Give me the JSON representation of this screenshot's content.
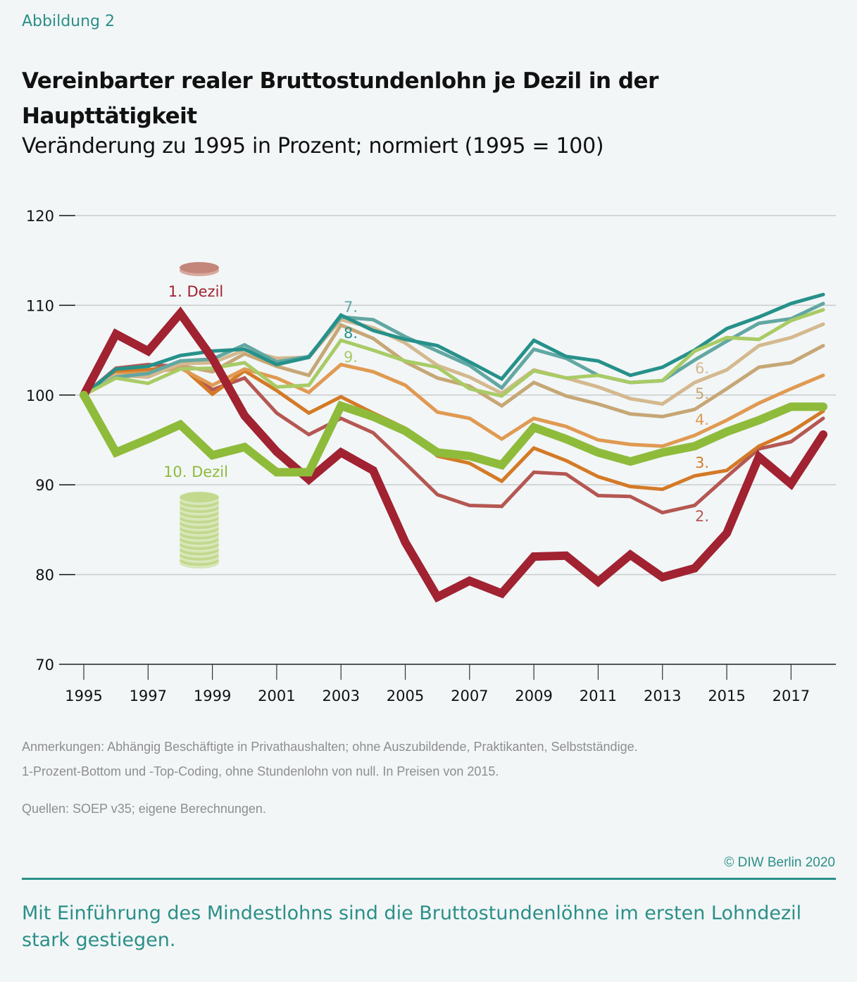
{
  "header": {
    "figure_label": "Abbildung 2",
    "title": "Vereinbarter realer Bruttostundenlohn je Dezil in der Haupttätigkeit",
    "subtitle": "Veränderung zu 1995 in Prozent; normiert (1995 = 100)"
  },
  "footer": {
    "notes_line1": "Anmerkungen: Abhängig Beschäftigte in Privathaushalten; ohne Auszubildende, Praktikanten, Selbstständige.",
    "notes_line2": "1-Prozent-Bottom und -Top-Coding, ohne Stundenlohn von null. In Preisen von 2015.",
    "sources": "Quellen: SOEP v35; eigene Berechnungen.",
    "copyright": "© DIW Berlin 2020",
    "takeaway": "Mit Einführung des Mindestlohns sind die Bruttostundenlöhne im ersten Lohndezil stark gestiegen."
  },
  "chart_data": {
    "type": "line",
    "title": "Vereinbarter realer Bruttostundenlohn je Dezil in der Haupttätigkeit",
    "subtitle": "Veränderung zu 1995 in Prozent; normiert (1995 = 100)",
    "xlabel": "",
    "ylabel": "",
    "ylim": [
      70,
      120
    ],
    "xlim": [
      1995,
      2018
    ],
    "yticks": [
      70,
      80,
      90,
      100,
      110,
      120
    ],
    "xticks": [
      1995,
      1997,
      1999,
      2001,
      2003,
      2005,
      2007,
      2009,
      2011,
      2013,
      2015,
      2017
    ],
    "grid": true,
    "x": [
      1995,
      1996,
      1997,
      1998,
      1999,
      2000,
      2001,
      2002,
      2003,
      2004,
      2005,
      2006,
      2007,
      2008,
      2009,
      2010,
      2011,
      2012,
      2013,
      2014,
      2015,
      2016,
      2017,
      2018
    ],
    "series": [
      {
        "name": "2.",
        "color": "#b55752",
        "label": "2.",
        "values": [
          100,
          103.0,
          103.4,
          103.2,
          100.6,
          101.9,
          98.0,
          95.6,
          97.4,
          95.8,
          92.4,
          88.9,
          87.7,
          87.6,
          91.4,
          91.2,
          88.8,
          88.7,
          86.9,
          87.7,
          90.9,
          94.0,
          94.8,
          97.4
        ]
      },
      {
        "name": "3.",
        "color": "#d47a26",
        "label": "3.",
        "values": [
          100,
          102.6,
          102.8,
          103.3,
          100.1,
          102.7,
          100.5,
          98.0,
          99.8,
          98.0,
          96.3,
          93.2,
          92.4,
          90.4,
          94.1,
          92.7,
          90.9,
          89.8,
          89.5,
          91.0,
          91.6,
          94.3,
          95.9,
          98.2
        ]
      },
      {
        "name": "4.",
        "color": "#e09a52",
        "label": "4.",
        "values": [
          100,
          102.3,
          102.5,
          103.0,
          101.1,
          102.9,
          101.9,
          100.3,
          103.4,
          102.6,
          101.1,
          98.1,
          97.4,
          95.1,
          97.4,
          96.5,
          95.0,
          94.5,
          94.3,
          95.5,
          97.2,
          99.1,
          100.7,
          102.2
        ]
      },
      {
        "name": "5.",
        "color": "#c6a775",
        "label": "5.",
        "values": [
          100,
          102.0,
          102.2,
          103.3,
          102.6,
          104.6,
          103.2,
          102.2,
          107.8,
          106.3,
          103.7,
          101.9,
          101.0,
          98.8,
          101.4,
          99.9,
          99.0,
          97.9,
          97.6,
          98.4,
          100.7,
          103.1,
          103.6,
          105.5
        ]
      },
      {
        "name": "6.",
        "color": "#d4b98f",
        "label": "6.",
        "values": [
          100,
          102.2,
          102.0,
          103.5,
          103.6,
          105.0,
          104.1,
          104.2,
          108.4,
          107.5,
          105.8,
          103.3,
          102.0,
          100.2,
          102.8,
          101.9,
          100.9,
          99.6,
          99.0,
          101.4,
          102.8,
          105.5,
          106.4,
          107.9
        ]
      },
      {
        "name": "7.",
        "color": "#62a7a2",
        "label": "7.",
        "values": [
          100,
          102.0,
          102.4,
          103.8,
          104.0,
          105.6,
          103.7,
          104.3,
          108.7,
          108.4,
          106.5,
          104.9,
          103.3,
          100.8,
          105.1,
          104.1,
          102.2,
          101.4,
          101.6,
          103.9,
          106.0,
          108.0,
          108.5,
          110.2
        ]
      },
      {
        "name": "8.",
        "color": "#26918a",
        "label": "8.",
        "values": [
          100,
          102.9,
          103.2,
          104.4,
          104.9,
          105.1,
          103.4,
          104.2,
          108.9,
          107.2,
          106.2,
          105.5,
          103.7,
          101.8,
          106.1,
          104.3,
          103.8,
          102.2,
          103.1,
          105.0,
          107.4,
          108.7,
          110.2,
          111.2
        ]
      },
      {
        "name": "9.",
        "color": "#a9cb66",
        "label": "9.",
        "values": [
          100,
          101.9,
          101.3,
          102.9,
          103.0,
          103.6,
          100.9,
          101.1,
          106.1,
          105.0,
          103.8,
          103.1,
          100.7,
          99.9,
          102.7,
          101.9,
          102.2,
          101.4,
          101.6,
          104.9,
          106.4,
          106.2,
          108.3,
          109.5
        ]
      },
      {
        "name": "1. Dezil",
        "color": "#a12231",
        "label": "1. Dezil",
        "values": [
          100,
          106.8,
          104.9,
          109.1,
          104.1,
          97.7,
          93.7,
          90.6,
          93.6,
          91.6,
          83.6,
          77.5,
          79.3,
          77.9,
          82.0,
          82.1,
          79.2,
          82.2,
          79.7,
          80.7,
          84.6,
          93.1,
          90.1,
          95.6
        ]
      },
      {
        "name": "10. Dezil",
        "color": "#8fbb3b",
        "label": "10. Dezil",
        "values": [
          100,
          93.6,
          95.1,
          96.7,
          93.3,
          94.2,
          91.4,
          91.4,
          98.8,
          97.6,
          96.0,
          93.6,
          93.2,
          92.2,
          96.4,
          95.1,
          93.6,
          92.6,
          93.6,
          94.3,
          95.9,
          97.2,
          98.7,
          98.7
        ]
      }
    ],
    "annotations": [
      "1. Dezil",
      "10. Dezil",
      "2.",
      "3.",
      "4.",
      "5.",
      "6.",
      "7.",
      "8.",
      "9."
    ],
    "icons": [
      "single-coin-icon",
      "coin-stack-icon"
    ]
  }
}
